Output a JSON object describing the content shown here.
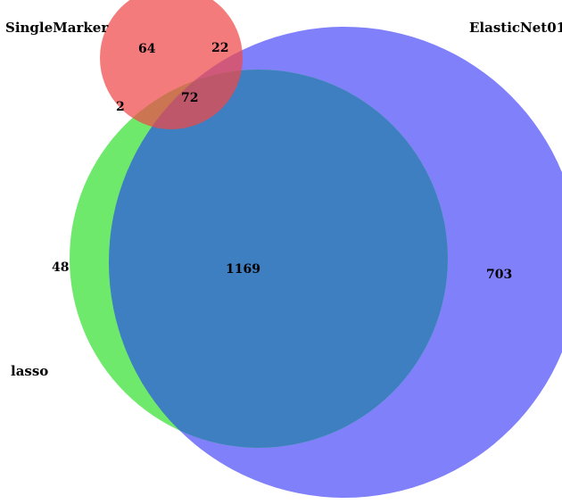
{
  "sets": {
    "single_marker": {
      "label": "SingleMarker",
      "color": "#f06a6a"
    },
    "elastic_net": {
      "label": "ElasticNet01",
      "color": "#7f80fa"
    },
    "lasso": {
      "label": "lasso",
      "color": "#6ee96c"
    }
  },
  "counts": {
    "single_marker_only": "64",
    "single_marker_elastic_net": "22",
    "single_marker_lasso_elastic_net": "72",
    "single_marker_lasso": "2",
    "lasso_only": "48",
    "lasso_elastic_net": "1169",
    "elastic_net_only": "703"
  }
}
